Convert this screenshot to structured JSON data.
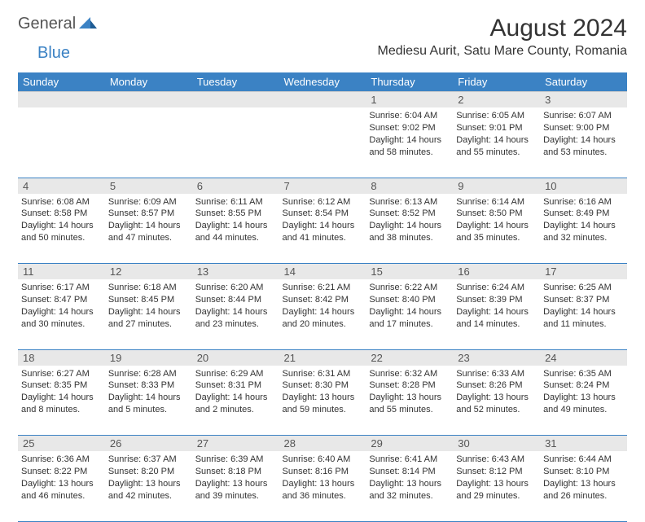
{
  "logo": {
    "word1": "General",
    "word2": "Blue"
  },
  "title": "August 2024",
  "location": "Mediesu Aurit, Satu Mare County, Romania",
  "colors": {
    "header_bg": "#3b82c4",
    "header_text": "#ffffff",
    "daynum_bg": "#e8e8e8",
    "daynum_text": "#555555",
    "body_text": "#333333",
    "line": "#3b82c4"
  },
  "day_headers": [
    "Sunday",
    "Monday",
    "Tuesday",
    "Wednesday",
    "Thursday",
    "Friday",
    "Saturday"
  ],
  "weeks": [
    {
      "nums": [
        "",
        "",
        "",
        "",
        "1",
        "2",
        "3"
      ],
      "cells": [
        {
          "sunrise": "",
          "sunset": "",
          "daylight": ""
        },
        {
          "sunrise": "",
          "sunset": "",
          "daylight": ""
        },
        {
          "sunrise": "",
          "sunset": "",
          "daylight": ""
        },
        {
          "sunrise": "",
          "sunset": "",
          "daylight": ""
        },
        {
          "sunrise": "Sunrise: 6:04 AM",
          "sunset": "Sunset: 9:02 PM",
          "daylight": "Daylight: 14 hours and 58 minutes."
        },
        {
          "sunrise": "Sunrise: 6:05 AM",
          "sunset": "Sunset: 9:01 PM",
          "daylight": "Daylight: 14 hours and 55 minutes."
        },
        {
          "sunrise": "Sunrise: 6:07 AM",
          "sunset": "Sunset: 9:00 PM",
          "daylight": "Daylight: 14 hours and 53 minutes."
        }
      ]
    },
    {
      "nums": [
        "4",
        "5",
        "6",
        "7",
        "8",
        "9",
        "10"
      ],
      "cells": [
        {
          "sunrise": "Sunrise: 6:08 AM",
          "sunset": "Sunset: 8:58 PM",
          "daylight": "Daylight: 14 hours and 50 minutes."
        },
        {
          "sunrise": "Sunrise: 6:09 AM",
          "sunset": "Sunset: 8:57 PM",
          "daylight": "Daylight: 14 hours and 47 minutes."
        },
        {
          "sunrise": "Sunrise: 6:11 AM",
          "sunset": "Sunset: 8:55 PM",
          "daylight": "Daylight: 14 hours and 44 minutes."
        },
        {
          "sunrise": "Sunrise: 6:12 AM",
          "sunset": "Sunset: 8:54 PM",
          "daylight": "Daylight: 14 hours and 41 minutes."
        },
        {
          "sunrise": "Sunrise: 6:13 AM",
          "sunset": "Sunset: 8:52 PM",
          "daylight": "Daylight: 14 hours and 38 minutes."
        },
        {
          "sunrise": "Sunrise: 6:14 AM",
          "sunset": "Sunset: 8:50 PM",
          "daylight": "Daylight: 14 hours and 35 minutes."
        },
        {
          "sunrise": "Sunrise: 6:16 AM",
          "sunset": "Sunset: 8:49 PM",
          "daylight": "Daylight: 14 hours and 32 minutes."
        }
      ]
    },
    {
      "nums": [
        "11",
        "12",
        "13",
        "14",
        "15",
        "16",
        "17"
      ],
      "cells": [
        {
          "sunrise": "Sunrise: 6:17 AM",
          "sunset": "Sunset: 8:47 PM",
          "daylight": "Daylight: 14 hours and 30 minutes."
        },
        {
          "sunrise": "Sunrise: 6:18 AM",
          "sunset": "Sunset: 8:45 PM",
          "daylight": "Daylight: 14 hours and 27 minutes."
        },
        {
          "sunrise": "Sunrise: 6:20 AM",
          "sunset": "Sunset: 8:44 PM",
          "daylight": "Daylight: 14 hours and 23 minutes."
        },
        {
          "sunrise": "Sunrise: 6:21 AM",
          "sunset": "Sunset: 8:42 PM",
          "daylight": "Daylight: 14 hours and 20 minutes."
        },
        {
          "sunrise": "Sunrise: 6:22 AM",
          "sunset": "Sunset: 8:40 PM",
          "daylight": "Daylight: 14 hours and 17 minutes."
        },
        {
          "sunrise": "Sunrise: 6:24 AM",
          "sunset": "Sunset: 8:39 PM",
          "daylight": "Daylight: 14 hours and 14 minutes."
        },
        {
          "sunrise": "Sunrise: 6:25 AM",
          "sunset": "Sunset: 8:37 PM",
          "daylight": "Daylight: 14 hours and 11 minutes."
        }
      ]
    },
    {
      "nums": [
        "18",
        "19",
        "20",
        "21",
        "22",
        "23",
        "24"
      ],
      "cells": [
        {
          "sunrise": "Sunrise: 6:27 AM",
          "sunset": "Sunset: 8:35 PM",
          "daylight": "Daylight: 14 hours and 8 minutes."
        },
        {
          "sunrise": "Sunrise: 6:28 AM",
          "sunset": "Sunset: 8:33 PM",
          "daylight": "Daylight: 14 hours and 5 minutes."
        },
        {
          "sunrise": "Sunrise: 6:29 AM",
          "sunset": "Sunset: 8:31 PM",
          "daylight": "Daylight: 14 hours and 2 minutes."
        },
        {
          "sunrise": "Sunrise: 6:31 AM",
          "sunset": "Sunset: 8:30 PM",
          "daylight": "Daylight: 13 hours and 59 minutes."
        },
        {
          "sunrise": "Sunrise: 6:32 AM",
          "sunset": "Sunset: 8:28 PM",
          "daylight": "Daylight: 13 hours and 55 minutes."
        },
        {
          "sunrise": "Sunrise: 6:33 AM",
          "sunset": "Sunset: 8:26 PM",
          "daylight": "Daylight: 13 hours and 52 minutes."
        },
        {
          "sunrise": "Sunrise: 6:35 AM",
          "sunset": "Sunset: 8:24 PM",
          "daylight": "Daylight: 13 hours and 49 minutes."
        }
      ]
    },
    {
      "nums": [
        "25",
        "26",
        "27",
        "28",
        "29",
        "30",
        "31"
      ],
      "cells": [
        {
          "sunrise": "Sunrise: 6:36 AM",
          "sunset": "Sunset: 8:22 PM",
          "daylight": "Daylight: 13 hours and 46 minutes."
        },
        {
          "sunrise": "Sunrise: 6:37 AM",
          "sunset": "Sunset: 8:20 PM",
          "daylight": "Daylight: 13 hours and 42 minutes."
        },
        {
          "sunrise": "Sunrise: 6:39 AM",
          "sunset": "Sunset: 8:18 PM",
          "daylight": "Daylight: 13 hours and 39 minutes."
        },
        {
          "sunrise": "Sunrise: 6:40 AM",
          "sunset": "Sunset: 8:16 PM",
          "daylight": "Daylight: 13 hours and 36 minutes."
        },
        {
          "sunrise": "Sunrise: 6:41 AM",
          "sunset": "Sunset: 8:14 PM",
          "daylight": "Daylight: 13 hours and 32 minutes."
        },
        {
          "sunrise": "Sunrise: 6:43 AM",
          "sunset": "Sunset: 8:12 PM",
          "daylight": "Daylight: 13 hours and 29 minutes."
        },
        {
          "sunrise": "Sunrise: 6:44 AM",
          "sunset": "Sunset: 8:10 PM",
          "daylight": "Daylight: 13 hours and 26 minutes."
        }
      ]
    }
  ]
}
